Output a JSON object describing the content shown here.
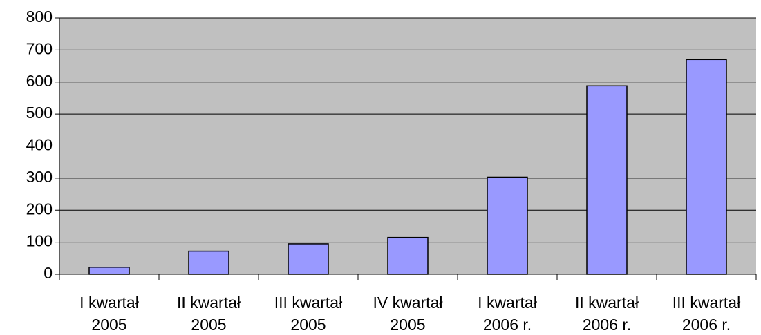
{
  "chart_data": {
    "type": "bar",
    "categories": [
      [
        "I kwartał",
        "2005"
      ],
      [
        "II kwartał",
        "2005"
      ],
      [
        "III kwartał",
        "2005"
      ],
      [
        "IV kwartał",
        "2005"
      ],
      [
        "I kwartał",
        "2006 r."
      ],
      [
        "II kwartał",
        "2006 r."
      ],
      [
        "III kwartał",
        "2006 r."
      ]
    ],
    "values": [
      22,
      72,
      95,
      115,
      303,
      588,
      670
    ],
    "color": "#9999ff",
    "ylim": [
      0,
      800
    ],
    "yticks": [
      0,
      100,
      200,
      300,
      400,
      500,
      600,
      700,
      800
    ],
    "grid": true
  }
}
